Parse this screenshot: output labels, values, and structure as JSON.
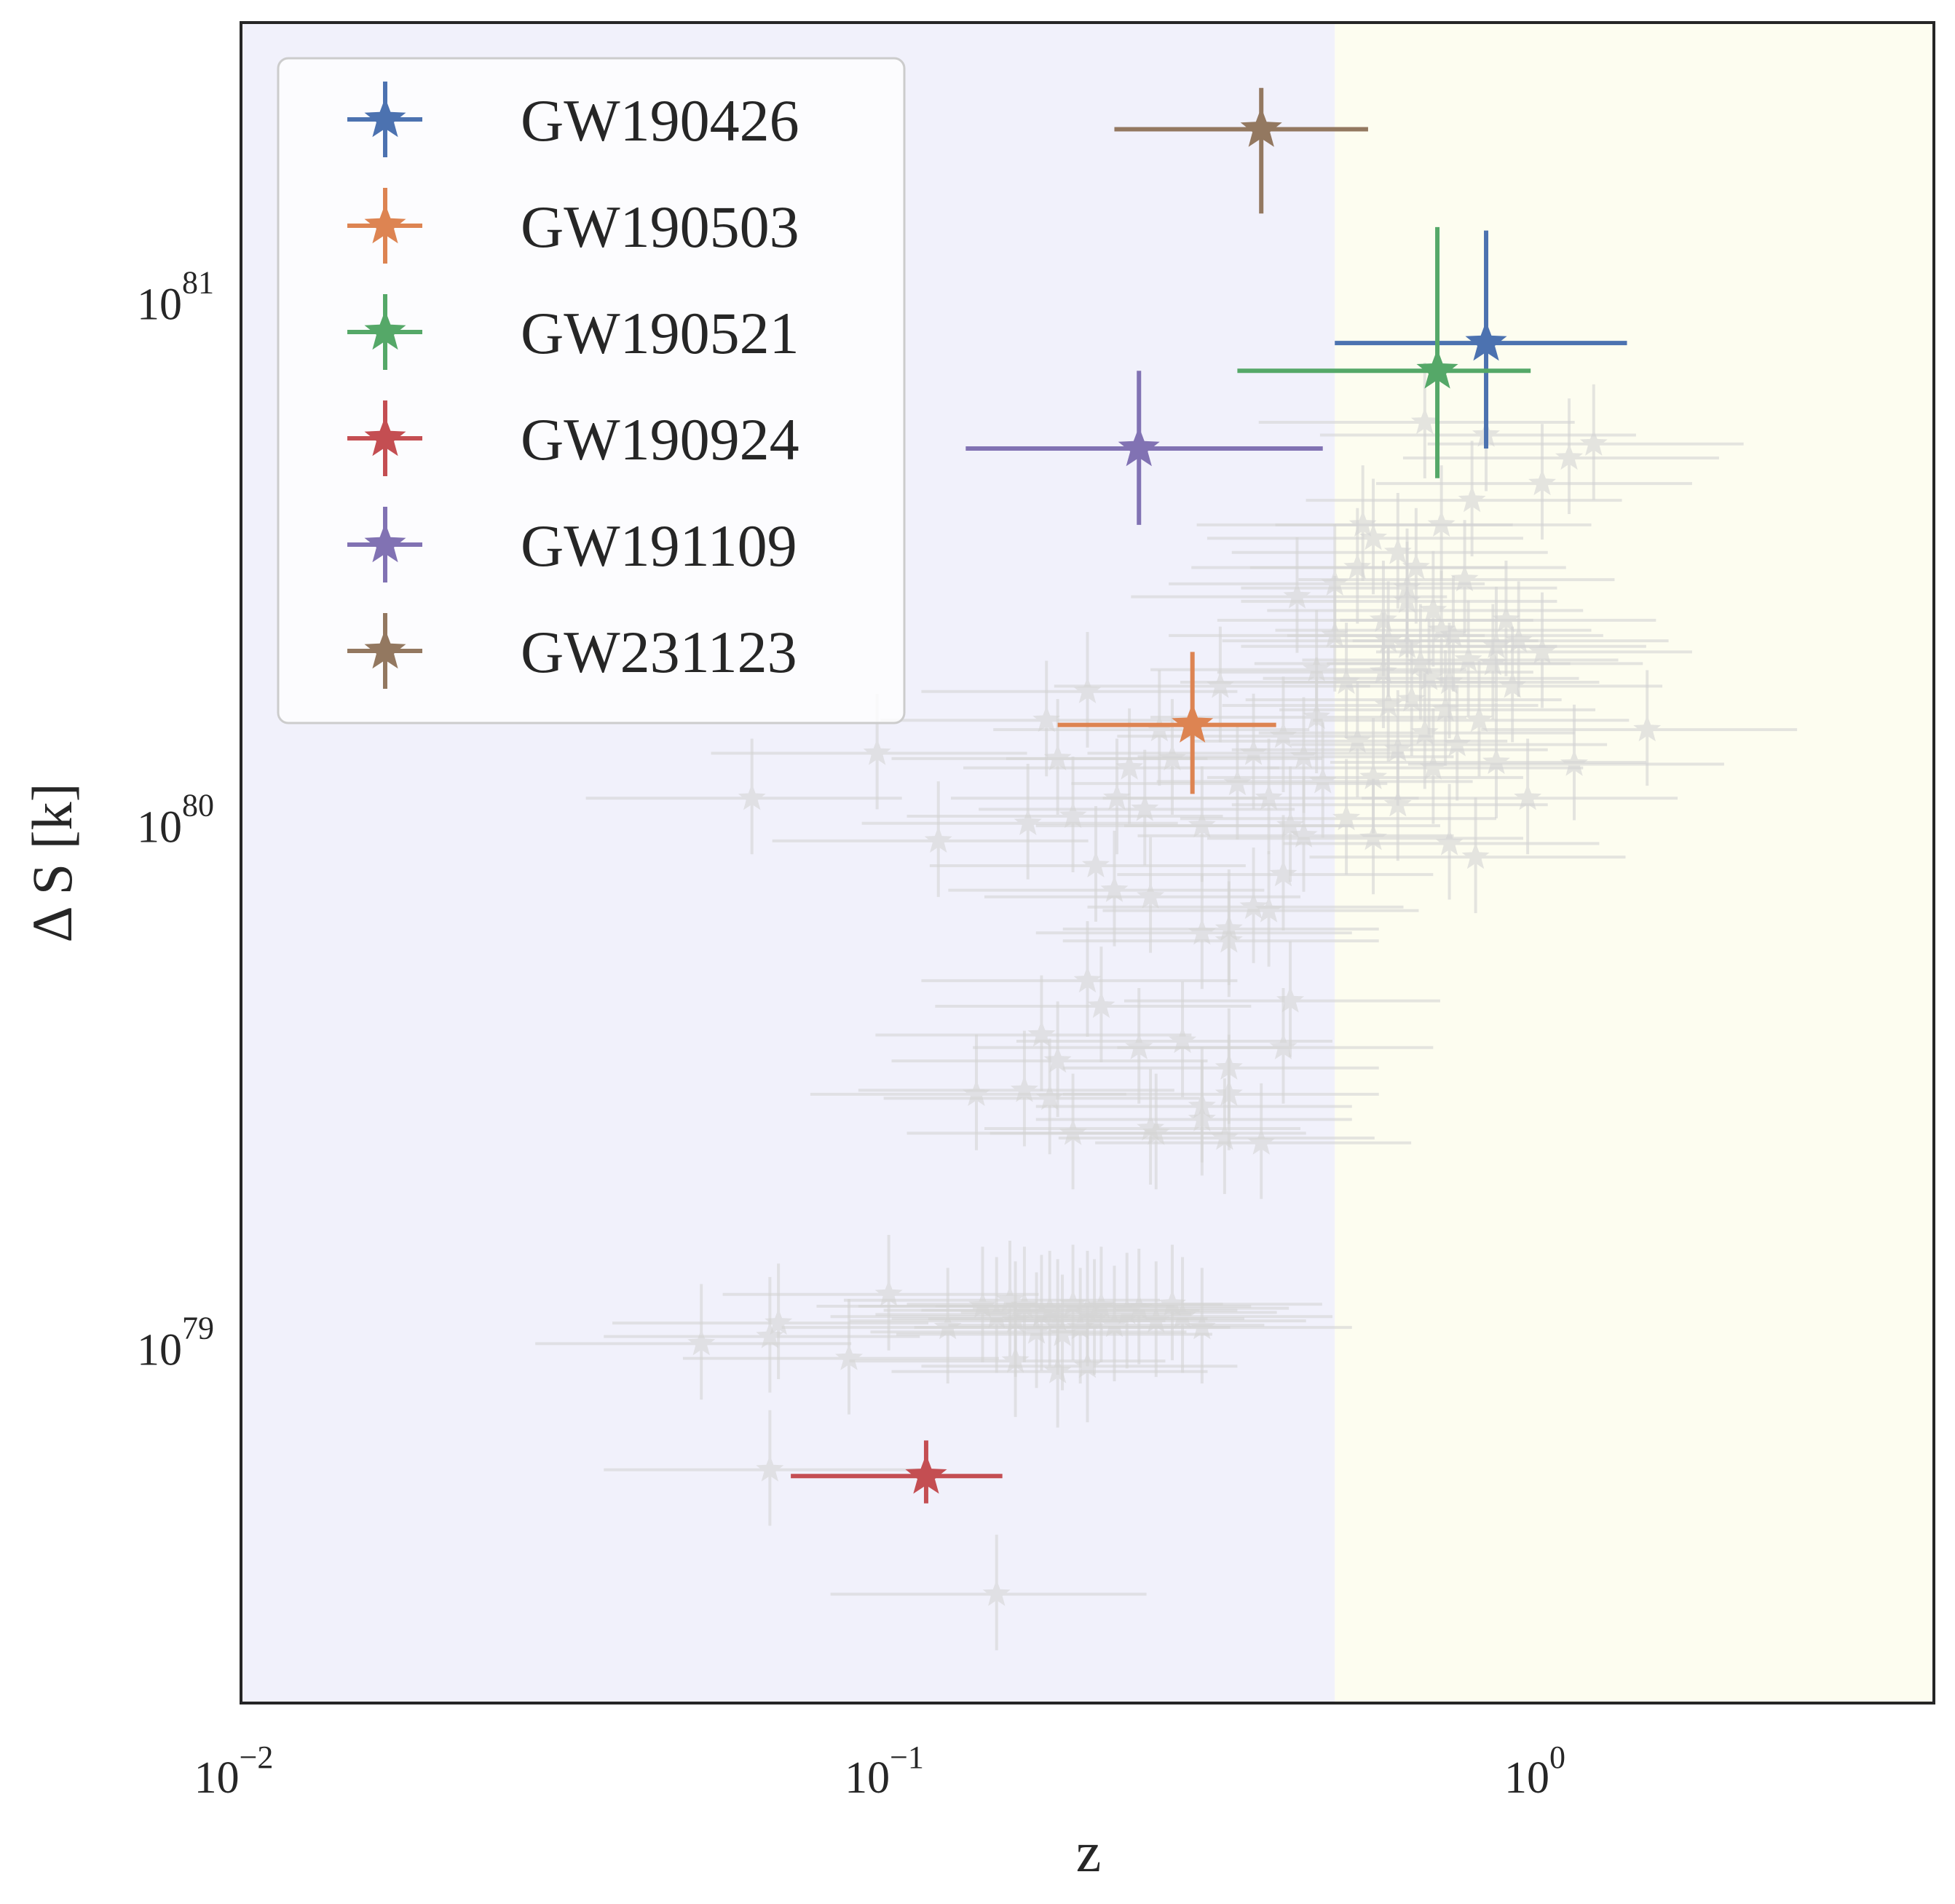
{
  "chart_data": {
    "type": "scatter",
    "title": "",
    "xlabel": "z",
    "ylabel": "Δ S [k]",
    "xscale": "log",
    "yscale": "log",
    "xlim": [
      0.01,
      4.0
    ],
    "ylim": [
      1.95e+78,
      3.2e+81
    ],
    "x_ticks": [
      {
        "value": 0.01,
        "base": "10",
        "exp": "−2"
      },
      {
        "value": 0.1,
        "base": "10",
        "exp": "−1"
      },
      {
        "value": 1.0,
        "base": "10",
        "exp": "0"
      }
    ],
    "y_ticks": [
      {
        "value": 1e+79,
        "base": "10",
        "exp": "79"
      },
      {
        "value": 1e+80,
        "base": "10",
        "exp": "80"
      },
      {
        "value": 1e+81,
        "base": "10",
        "exp": "81"
      }
    ],
    "regions": [
      {
        "x_from": 0.01,
        "x_to": 0.48,
        "color": "#f1f1fb"
      },
      {
        "x_from": 0.48,
        "x_to": 4.0,
        "color": "#fdfdf0"
      }
    ],
    "grid": false,
    "legend_position": "top-left",
    "series": [
      {
        "name": "GW190426",
        "color": "#4c72b0",
        "x": 0.82,
        "y": 7.8e+80,
        "xerr": [
          0.48,
          1.35
        ],
        "yerr": [
          4.9e+80,
          1.28e+81
        ]
      },
      {
        "name": "GW190503",
        "color": "#dd8452",
        "x": 0.29,
        "y": 1.45e+80,
        "xerr": [
          0.18,
          0.39
        ],
        "yerr": [
          1.07e+80,
          2e+80
        ]
      },
      {
        "name": "GW190521",
        "color": "#55a868",
        "x": 0.69,
        "y": 6.9e+80,
        "xerr": [
          0.34,
          0.96
        ],
        "yerr": [
          4.3e+80,
          1.3e+81
        ]
      },
      {
        "name": "GW190924",
        "color": "#c44e52",
        "x": 0.113,
        "y": 5.3e+78,
        "xerr": [
          0.07,
          0.148
        ],
        "yerr": [
          4.7e+78,
          6.2e+78
        ]
      },
      {
        "name": "GW191109",
        "color": "#8172b3",
        "x": 0.24,
        "y": 4.9e+80,
        "xerr": [
          0.13,
          0.46
        ],
        "yerr": [
          3.5e+80,
          6.9e+80
        ]
      },
      {
        "name": "GW231123",
        "color": "#937860",
        "x": 0.37,
        "y": 2e+81,
        "xerr": [
          0.22,
          0.54
        ],
        "yerr": [
          1.38e+81,
          2.4e+81
        ]
      }
    ],
    "background_events": {
      "color": "#d5d5d5",
      "points": [
        [
          0.061,
          1.05e+80
        ],
        [
          0.095,
          1.28e+80
        ],
        [
          0.118,
          8.7e+79
        ],
        [
          0.162,
          9.4e+79
        ],
        [
          0.173,
          1.48e+80
        ],
        [
          0.18,
          1.25e+80
        ],
        [
          0.19,
          9.7e+79
        ],
        [
          0.2,
          1.68e+80
        ],
        [
          0.206,
          7.8e+79
        ],
        [
          0.222,
          1.05e+80
        ],
        [
          0.232,
          1.2e+80
        ],
        [
          0.245,
          1e+80
        ],
        [
          0.258,
          1.42e+80
        ],
        [
          0.27,
          1.25e+80
        ],
        [
          0.3,
          9.3e+79
        ],
        [
          0.32,
          1.72e+80
        ],
        [
          0.34,
          1.12e+80
        ],
        [
          0.36,
          1.28e+80
        ],
        [
          0.38,
          1.05e+80
        ],
        [
          0.4,
          1.38e+80
        ],
        [
          0.41,
          9.3e+79
        ],
        [
          0.43,
          1.26e+80
        ],
        [
          0.45,
          1.5e+80
        ],
        [
          0.46,
          1.13e+80
        ],
        [
          0.5,
          1.75e+80
        ],
        [
          0.52,
          1.35e+80
        ],
        [
          0.55,
          1.15e+80
        ],
        [
          0.58,
          2.1e+80
        ],
        [
          0.6,
          1.3e+80
        ],
        [
          0.62,
          2.5e+80
        ],
        [
          0.63,
          1.62e+80
        ],
        [
          0.65,
          1.9e+80
        ],
        [
          0.66,
          1.4e+80
        ],
        [
          0.68,
          1.2e+80
        ],
        [
          0.7,
          2.2e+80
        ],
        [
          0.72,
          1.75e+80
        ],
        [
          0.74,
          1.33e+80
        ],
        [
          0.77,
          1.93e+80
        ],
        [
          0.8,
          1.48e+80
        ],
        [
          0.85,
          1.23e+80
        ],
        [
          0.9,
          1.72e+80
        ],
        [
          0.55,
          3.3e+80
        ],
        [
          0.6,
          3.1e+80
        ],
        [
          0.64,
          2.9e+80
        ],
        [
          0.66,
          5.5e+80
        ],
        [
          0.7,
          3.5e+80
        ],
        [
          0.76,
          2.75e+80
        ],
        [
          0.82,
          5.2e+80
        ],
        [
          0.92,
          2.1e+80
        ],
        [
          1.0,
          4.2e+80
        ],
        [
          1.1,
          4.7e+80
        ],
        [
          1.2,
          5e+80
        ],
        [
          1.12,
          1.22e+80
        ],
        [
          0.95,
          1.05e+80
        ],
        [
          1.45,
          1.42e+80
        ],
        [
          0.79,
          8.1e+79
        ],
        [
          0.72,
          8.6e+79
        ],
        [
          0.55,
          8.8e+79
        ],
        [
          0.5,
          9.6e+79
        ],
        [
          0.43,
          8.9e+79
        ],
        [
          0.4,
          7.5e+79
        ],
        [
          0.36,
          6.5e+79
        ],
        [
          0.33,
          5.6e+79
        ],
        [
          0.3,
          5.8e+79
        ],
        [
          0.25,
          6.8e+79
        ],
        [
          0.22,
          7e+79
        ],
        [
          0.2,
          4.7e+79
        ],
        [
          0.21,
          4.2e+79
        ],
        [
          0.17,
          3.7e+79
        ],
        [
          0.18,
          3.3e+79
        ],
        [
          0.24,
          3.5e+79
        ],
        [
          0.33,
          3.2e+79
        ],
        [
          0.28,
          3.6e+79
        ],
        [
          0.4,
          3.5e+79
        ],
        [
          0.41,
          4.3e+79
        ],
        [
          0.38,
          6.4e+79
        ],
        [
          0.33,
          5.9e+79
        ],
        [
          0.16,
          2.9e+79
        ],
        [
          0.175,
          2.8e+79
        ],
        [
          0.135,
          2.85e+79
        ],
        [
          0.3,
          2.7e+79
        ],
        [
          0.33,
          2.85e+79
        ],
        [
          0.25,
          2.45e+79
        ],
        [
          0.255,
          2.4e+79
        ],
        [
          0.19,
          2.4e+79
        ],
        [
          0.3,
          2.55e+79
        ],
        [
          0.325,
          2.35e+79
        ],
        [
          0.37,
          2.3e+79
        ],
        [
          0.051,
          9.5e+78
        ],
        [
          0.065,
          9.8e+78
        ],
        [
          0.067,
          1.04e+79
        ],
        [
          0.086,
          8.9e+78
        ],
        [
          0.099,
          1.18e+79
        ],
        [
          0.122,
          1.02e+79
        ],
        [
          0.138,
          1.12e+79
        ],
        [
          0.145,
          1.07e+79
        ],
        [
          0.152,
          1.15e+79
        ],
        [
          0.155,
          1.05e+79
        ],
        [
          0.16,
          1.12e+79
        ],
        [
          0.167,
          1e+79
        ],
        [
          0.17,
          1.08e+79
        ],
        [
          0.175,
          1.1e+79
        ],
        [
          0.18,
          1.06e+79
        ],
        [
          0.183,
          9.9e+78
        ],
        [
          0.19,
          1.13e+79
        ],
        [
          0.195,
          1.02e+79
        ],
        [
          0.2,
          1.1e+79
        ],
        [
          0.205,
          1.06e+79
        ],
        [
          0.21,
          1.12e+79
        ],
        [
          0.22,
          1.03e+79
        ],
        [
          0.23,
          1.09e+79
        ],
        [
          0.24,
          1.11e+79
        ],
        [
          0.255,
          1.05e+79
        ],
        [
          0.27,
          1.13e+79
        ],
        [
          0.28,
          1.07e+79
        ],
        [
          0.3,
          1.02e+79
        ],
        [
          0.2,
          8.6e+78
        ],
        [
          0.155,
          8.8e+78
        ],
        [
          0.18,
          8.4e+78
        ],
        [
          0.065,
          5.45e+78
        ],
        [
          0.145,
          3.15e+78
        ],
        [
          0.48,
          2.7e+80
        ],
        [
          0.42,
          2.55e+80
        ],
        [
          0.52,
          2.9e+80
        ],
        [
          0.57,
          2.3e+80
        ],
        [
          0.45,
          1.85e+80
        ],
        [
          0.58,
          1.58e+80
        ],
        [
          0.48,
          2.15e+80
        ],
        [
          0.62,
          2.05e+80
        ],
        [
          0.67,
          1.78e+80
        ],
        [
          0.71,
          1.55e+80
        ],
        [
          0.57,
          1.83e+80
        ],
        [
          0.73,
          2.15e+80
        ],
        [
          0.84,
          1.9e+80
        ],
        [
          1.0,
          2e+80
        ],
        [
          0.88,
          2.3e+80
        ],
        [
          0.62,
          2.65e+80
        ],
        [
          0.68,
          2.4e+80
        ],
        [
          0.53,
          3.5e+80
        ],
        [
          0.78,
          3.9e+80
        ],
        [
          0.85,
          2.05e+80
        ],
        [
          0.6,
          1.02e+80
        ]
      ]
    }
  }
}
